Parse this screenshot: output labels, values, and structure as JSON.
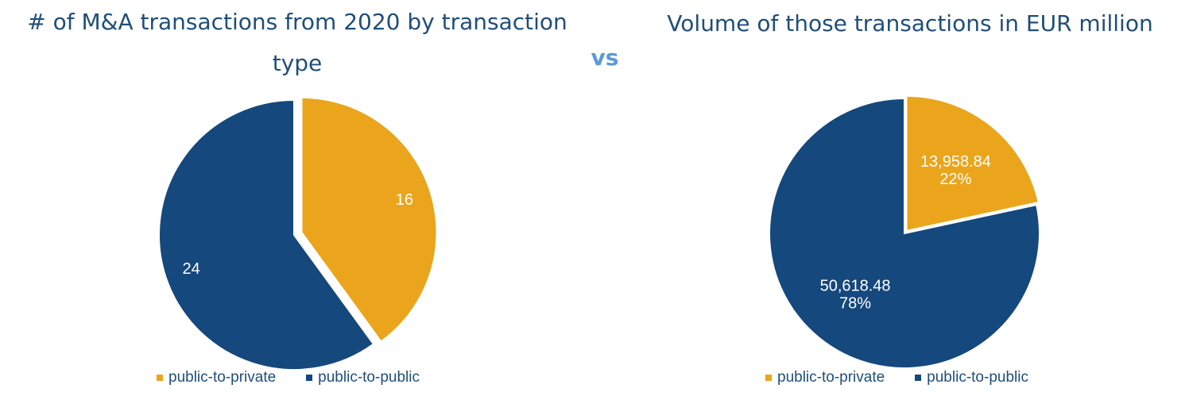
{
  "vs_label": "vs",
  "colors": {
    "public_to_private": "#eaa51c",
    "public_to_public": "#15487c",
    "title": "#1f4e79",
    "vs": "#5b9bd5"
  },
  "chart_data": [
    {
      "type": "pie",
      "title": "# of M&A transactions from 2020 by transaction type",
      "legend_position": "bottom",
      "slices": [
        {
          "name": "public-to-private",
          "value": 16,
          "label": "16",
          "color": "#eaa51c"
        },
        {
          "name": "public-to-public",
          "value": 24,
          "label": "24",
          "color": "#15487c"
        }
      ]
    },
    {
      "type": "pie",
      "title": "Volume of those transactions in EUR million",
      "legend_position": "bottom",
      "slices": [
        {
          "name": "public-to-private",
          "value": 13958.84,
          "label": "13,958.84",
          "percent": "22%",
          "color": "#eaa51c"
        },
        {
          "name": "public-to-public",
          "value": 50618.48,
          "label": "50,618.48",
          "percent": "78%",
          "color": "#15487c"
        }
      ]
    }
  ]
}
